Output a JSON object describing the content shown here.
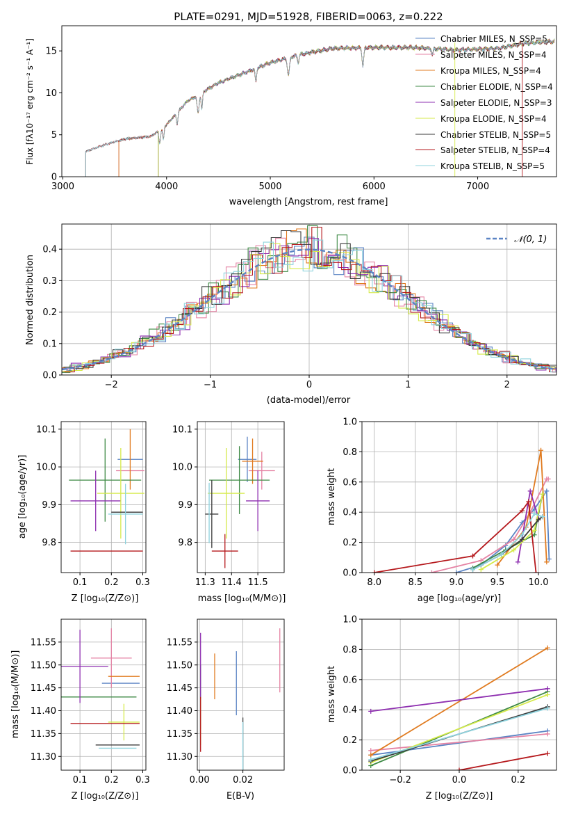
{
  "figure": {
    "title": "PLATE=0291, MJD=51928, FIBERID=0063, z=0.222"
  },
  "colors": {
    "Chabrier MILES": "#5b84c4",
    "Salpeter MILES": "#e583a4",
    "Kroupa MILES": "#e07b20",
    "Chabrier ELODIE": "#3e8a45",
    "Salpeter ELODIE": "#8e2fb0",
    "Kroupa ELODIE": "#d6ea4a",
    "Chabrier STELIB": "#3a3a3a",
    "Salpeter STELIB": "#b5181c",
    "Kroupa STELIB": "#8fd3de"
  },
  "chart_data": [
    {
      "type": "line",
      "xlabel": "wavelength [Angstrom, rest frame]",
      "ylabel": "Flux [fλ10⁻¹⁷ erg cm⁻² s⁻¹ A⁻¹]",
      "xlim": [
        2990,
        7760
      ],
      "ylim": [
        0,
        18
      ],
      "xticks": [
        3000,
        4000,
        5000,
        6000,
        7000
      ],
      "yticks": [
        0,
        5,
        10,
        15
      ],
      "legend": "top-right",
      "legend_entries": [
        "Chabrier MILES, N_SSP=5",
        "Salpeter MILES, N_SSP=4",
        "Kroupa MILES, N_SSP=4",
        "Chabrier ELODIE, N_SSP=4",
        "Salpeter ELODIE, N_SSP=3",
        "Kroupa ELODIE, N_SSP=4",
        "Chabrier STELIB, N_SSP=5",
        "Salpeter STELIB, N_SSP=4",
        "Kroupa STELIB, N_SSP=5"
      ],
      "continuum": [
        [
          3220,
          3.0
        ],
        [
          3400,
          3.8
        ],
        [
          3600,
          4.5
        ],
        [
          3850,
          4.8
        ],
        [
          4000,
          6.2
        ],
        [
          4200,
          9.0
        ],
        [
          4500,
          11.2
        ],
        [
          4800,
          12.6
        ],
        [
          5000,
          13.6
        ],
        [
          5300,
          14.6
        ],
        [
          5600,
          15.3
        ],
        [
          6000,
          15.4
        ],
        [
          6400,
          15.4
        ],
        [
          6800,
          15.1
        ],
        [
          7200,
          15.3
        ],
        [
          7450,
          15.9
        ],
        [
          7700,
          16.1
        ]
      ],
      "series": [
        {
          "name": "Chabrier MILES",
          "start": 3540
        },
        {
          "name": "Salpeter MILES",
          "start": 3540
        },
        {
          "name": "Kroupa MILES",
          "start": 3540
        },
        {
          "name": "Chabrier ELODIE",
          "start": 3920
        },
        {
          "name": "Salpeter ELODIE",
          "start": 3920
        },
        {
          "name": "Kroupa ELODIE",
          "start": 3920
        },
        {
          "name": "Chabrier STELIB",
          "start": 3220
        },
        {
          "name": "Salpeter STELIB",
          "start": 3220
        },
        {
          "name": "Kroupa STELIB",
          "start": 3220
        }
      ]
    },
    {
      "type": "histogram",
      "xlabel": "(data-model)/error",
      "ylabel": "Normed distribution",
      "xlim": [
        -2.5,
        2.5
      ],
      "ylim": [
        0,
        0.48
      ],
      "xticks": [
        -2,
        -1,
        0,
        1,
        2
      ],
      "yticks": [
        0.0,
        0.1,
        0.2,
        0.3,
        0.4
      ],
      "grid": true,
      "legend": "top-right",
      "legend_entries": [
        "𝒩(0, 1)"
      ],
      "bin_width": 0.1,
      "reference_curve": {
        "mean": 0,
        "sigma": 1
      }
    },
    {
      "type": "errorbar",
      "xlabel": "Z [log₁₀(Z/Z⊙)]",
      "ylabel": "age  [log₁₀(age/yr)]",
      "xlim": [
        0.04,
        0.31
      ],
      "ylim": [
        9.72,
        10.12
      ],
      "xticks": [
        0.1,
        0.2,
        0.3
      ],
      "yticks": [
        9.8,
        9.9,
        10.0,
        10.1
      ],
      "grid": true,
      "points": [
        {
          "name": "Chabrier MILES",
          "x": 0.26,
          "y": 10.02,
          "xerr": 0.04,
          "yerr": 0.0
        },
        {
          "name": "Salpeter MILES",
          "x": 0.26,
          "y": 9.99,
          "xerr": 0.045,
          "yerr": 0.0
        },
        {
          "name": "Kroupa MILES",
          "x": 0.26,
          "y": 10.02,
          "xerr": 0.0,
          "yerr": 0.08
        },
        {
          "name": "Chabrier ELODIE",
          "x": 0.18,
          "y": 9.965,
          "xerr": 0.115,
          "yerr": 0.11
        },
        {
          "name": "Salpeter ELODIE",
          "x": 0.15,
          "y": 9.91,
          "xerr": 0.08,
          "yerr": 0.08
        },
        {
          "name": "Kroupa ELODIE",
          "x": 0.23,
          "y": 9.93,
          "xerr": 0.075,
          "yerr": 0.12
        },
        {
          "name": "Chabrier STELIB",
          "x": 0.25,
          "y": 9.88,
          "xerr": 0.05,
          "yerr": 0.0
        },
        {
          "name": "Salpeter STELIB",
          "x": 0.185,
          "y": 9.777,
          "xerr": 0.115,
          "yerr": 0.0
        },
        {
          "name": "Kroupa STELIB",
          "x": 0.245,
          "y": 9.875,
          "xerr": 0.055,
          "yerr": 0.08
        }
      ]
    },
    {
      "type": "errorbar",
      "xlabel": "mass [log₁₀(M/M⊙)]",
      "ylabel": "",
      "xlim": [
        11.27,
        11.6
      ],
      "ylim": [
        9.72,
        10.12
      ],
      "xticks": [
        11.3,
        11.4,
        11.5
      ],
      "yticks": [
        9.8,
        9.9,
        10.0,
        10.1
      ],
      "grid": true,
      "points": [
        {
          "name": "Chabrier MILES",
          "x": 11.46,
          "y": 10.02,
          "xerr": 0.035,
          "yerr": 0.06
        },
        {
          "name": "Salpeter MILES",
          "x": 11.515,
          "y": 9.99,
          "xerr": 0.05,
          "yerr": 0.05
        },
        {
          "name": "Kroupa MILES",
          "x": 11.48,
          "y": 10.015,
          "xerr": 0.04,
          "yerr": 0.06
        },
        {
          "name": "Chabrier ELODIE",
          "x": 11.43,
          "y": 9.965,
          "xerr": 0.115,
          "yerr": 0.09
        },
        {
          "name": "Salpeter ELODIE",
          "x": 11.5,
          "y": 9.91,
          "xerr": 0.045,
          "yerr": 0.08
        },
        {
          "name": "Kroupa ELODIE",
          "x": 11.38,
          "y": 9.93,
          "xerr": 0.07,
          "yerr": 0.12
        },
        {
          "name": "Chabrier STELIB",
          "x": 11.325,
          "y": 9.875,
          "xerr": 0.025,
          "yerr": 0.09
        },
        {
          "name": "Salpeter STELIB",
          "x": 11.375,
          "y": 9.777,
          "xerr": 0.05,
          "yerr": 0.045
        },
        {
          "name": "Kroupa STELIB",
          "x": 11.315,
          "y": 9.878,
          "xerr": 0.0,
          "yerr": 0.08
        }
      ]
    },
    {
      "type": "line",
      "xlabel": "age  [log₁₀(age/yr)]",
      "ylabel": "mass weight",
      "xlim": [
        7.85,
        10.22
      ],
      "ylim": [
        0,
        1.0
      ],
      "xticks": [
        8.0,
        8.5,
        9.0,
        9.5,
        10.0
      ],
      "yticks": [
        0.0,
        0.2,
        0.4,
        0.6,
        0.8,
        1.0
      ],
      "grid": true,
      "series": [
        {
          "name": "Chabrier MILES",
          "x": [
            9.0,
            9.3,
            9.6,
            9.8,
            9.95,
            10.1,
            10.13
          ],
          "y": [
            0.0,
            0.05,
            0.18,
            0.33,
            0.42,
            0.54,
            0.09
          ]
        },
        {
          "name": "Salpeter MILES",
          "x": [
            8.7,
            9.3,
            9.7,
            9.9,
            10.1,
            10.12
          ],
          "y": [
            0.0,
            0.08,
            0.22,
            0.4,
            0.62,
            0.62
          ]
        },
        {
          "name": "Kroupa MILES",
          "x": [
            9.5,
            9.85,
            10.03,
            10.1
          ],
          "y": [
            0.05,
            0.3,
            0.81,
            0.07
          ]
        },
        {
          "name": "Chabrier ELODIE",
          "x": [
            9.2,
            9.6,
            9.95,
            10.05
          ],
          "y": [
            0.03,
            0.15,
            0.25,
            0.52
          ]
        },
        {
          "name": "Salpeter ELODIE",
          "x": [
            9.75,
            9.9,
            10.0
          ],
          "y": [
            0.07,
            0.54,
            0.36
          ]
        },
        {
          "name": "Kroupa ELODIE",
          "x": [
            9.3,
            9.7,
            9.95,
            10.05
          ],
          "y": [
            0.02,
            0.15,
            0.28,
            0.52
          ]
        },
        {
          "name": "Chabrier STELIB",
          "x": [
            9.2,
            9.55,
            9.8,
            10.0,
            10.05
          ],
          "y": [
            0.02,
            0.12,
            0.22,
            0.35,
            0.37
          ]
        },
        {
          "name": "Salpeter STELIB",
          "x": [
            8.0,
            9.2,
            9.8,
            9.88,
            9.97
          ],
          "y": [
            0.0,
            0.11,
            0.41,
            0.47,
            0.0
          ]
        },
        {
          "name": "Kroupa STELIB",
          "x": [
            9.2,
            9.55,
            9.8,
            9.95,
            10.05
          ],
          "y": [
            0.02,
            0.12,
            0.25,
            0.39,
            0.37
          ]
        }
      ]
    },
    {
      "type": "errorbar",
      "xlabel": "Z [log₁₀(Z/Z⊙)]",
      "ylabel": "mass [log₁₀(M/M⊙)]",
      "xlim": [
        0.04,
        0.31
      ],
      "ylim": [
        11.27,
        11.6
      ],
      "xticks": [
        0.1,
        0.2,
        0.3
      ],
      "yticks": [
        11.3,
        11.35,
        11.4,
        11.45,
        11.5,
        11.55
      ],
      "grid": true,
      "points": [
        {
          "name": "Chabrier MILES",
          "x": 0.23,
          "y": 11.46,
          "xerr": 0.06,
          "yerr": 0.0
        },
        {
          "name": "Salpeter MILES",
          "x": 0.2,
          "y": 11.515,
          "xerr": 0.065,
          "yerr": 0.065
        },
        {
          "name": "Kroupa MILES",
          "x": 0.24,
          "y": 11.475,
          "xerr": 0.05,
          "yerr": 0.0
        },
        {
          "name": "Chabrier ELODIE",
          "x": 0.15,
          "y": 11.43,
          "xerr": 0.13,
          "yerr": 0.0
        },
        {
          "name": "Salpeter ELODIE",
          "x": 0.1,
          "y": 11.497,
          "xerr": 0.09,
          "yerr": 0.08
        },
        {
          "name": "Kroupa ELODIE",
          "x": 0.24,
          "y": 11.375,
          "xerr": 0.05,
          "yerr": 0.04
        },
        {
          "name": "Chabrier STELIB",
          "x": 0.22,
          "y": 11.325,
          "xerr": 0.07,
          "yerr": 0.0
        },
        {
          "name": "Salpeter STELIB",
          "x": 0.18,
          "y": 11.372,
          "xerr": 0.11,
          "yerr": 0.0
        },
        {
          "name": "Kroupa STELIB",
          "x": 0.22,
          "y": 11.318,
          "xerr": 0.06,
          "yerr": 0.0
        }
      ]
    },
    {
      "type": "errorbar",
      "xlabel": "E(B-V)",
      "ylabel": "",
      "xlim": [
        -0.001,
        0.039
      ],
      "ylim": [
        11.27,
        11.6
      ],
      "xticks": [
        0.0,
        0.02
      ],
      "yticks": [
        11.3,
        11.35,
        11.4,
        11.45,
        11.5,
        11.55
      ],
      "grid": true,
      "points": [
        {
          "name": "Chabrier MILES",
          "x": 0.017,
          "y": 11.46,
          "xerr": 0.0,
          "yerr": 0.07
        },
        {
          "name": "Salpeter MILES",
          "x": 0.037,
          "y": 11.51,
          "xerr": 0.0,
          "yerr": 0.07
        },
        {
          "name": "Kroupa MILES",
          "x": 0.007,
          "y": 11.475,
          "xerr": 0.0,
          "yerr": 0.05
        },
        {
          "name": "Chabrier ELODIE",
          "x": 0.0005,
          "y": 11.43,
          "xerr": 0.0,
          "yerr": 0.07
        },
        {
          "name": "Salpeter ELODIE",
          "x": 0.0005,
          "y": 11.5,
          "xerr": 0.0,
          "yerr": 0.07
        },
        {
          "name": "Kroupa ELODIE",
          "x": 0.0005,
          "y": 11.375,
          "xerr": 0.0,
          "yerr": 0.05
        },
        {
          "name": "Chabrier STELIB",
          "x": 0.02,
          "y": 11.325,
          "xerr": 0.0,
          "yerr": 0.06
        },
        {
          "name": "Salpeter STELIB",
          "x": 0.0005,
          "y": 11.37,
          "xerr": 0.0,
          "yerr": 0.06
        },
        {
          "name": "Kroupa STELIB",
          "x": 0.02,
          "y": 11.315,
          "xerr": 0.0,
          "yerr": 0.06
        }
      ]
    },
    {
      "type": "line",
      "xlabel": "Z [log₁₀(Z/Z⊙)]",
      "ylabel": "mass weight",
      "xlim": [
        -0.33,
        0.33
      ],
      "ylim": [
        0,
        1.0
      ],
      "xticks": [
        -0.2,
        0.0,
        0.2
      ],
      "yticks": [
        0.0,
        0.2,
        0.4,
        0.6,
        0.8,
        1.0
      ],
      "grid": true,
      "series": [
        {
          "name": "Chabrier MILES",
          "x": [
            -0.3,
            0.3
          ],
          "y": [
            0.1,
            0.26
          ]
        },
        {
          "name": "Salpeter MILES",
          "x": [
            -0.3,
            0.3
          ],
          "y": [
            0.13,
            0.24
          ]
        },
        {
          "name": "Kroupa MILES",
          "x": [
            -0.3,
            0.3
          ],
          "y": [
            0.1,
            0.81
          ]
        },
        {
          "name": "Chabrier ELODIE",
          "x": [
            -0.3,
            0.3
          ],
          "y": [
            0.03,
            0.52
          ]
        },
        {
          "name": "Salpeter ELODIE",
          "x": [
            -0.3,
            0.3
          ],
          "y": [
            0.39,
            0.54
          ]
        },
        {
          "name": "Kroupa ELODIE",
          "x": [
            -0.3,
            0.3
          ],
          "y": [
            0.05,
            0.5
          ]
        },
        {
          "name": "Chabrier STELIB",
          "x": [
            -0.3,
            0.3
          ],
          "y": [
            0.06,
            0.42
          ]
        },
        {
          "name": "Salpeter STELIB",
          "x": [
            0.0,
            0.3
          ],
          "y": [
            0.0,
            0.11
          ]
        },
        {
          "name": "Kroupa STELIB",
          "x": [
            -0.3,
            0.3
          ],
          "y": [
            0.07,
            0.41
          ]
        }
      ]
    }
  ]
}
